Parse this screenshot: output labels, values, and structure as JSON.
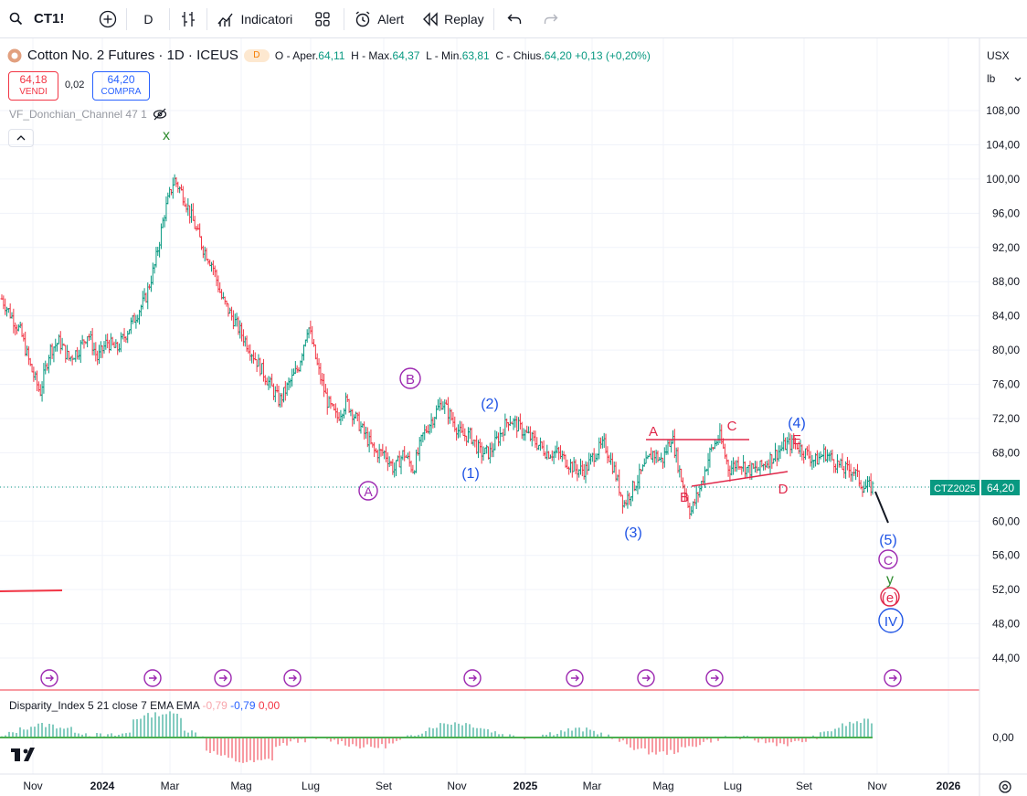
{
  "toolbar": {
    "symbol": "CT1!",
    "interval": "D",
    "indicators_label": "Indicatori",
    "alert_label": "Alert",
    "replay_label": "Replay"
  },
  "legend": {
    "title": "Cotton No. 2 Futures · 1D · ICEUS",
    "badge": "D",
    "open_label": "O - Aper.",
    "open": "64,11",
    "high_label": "H - Max.",
    "high": "64,37",
    "low_label": "L - Min.",
    "low": "63,81",
    "close_label": "C - Chius.",
    "close": "64,20",
    "change": "+0,13 (+0,20%)"
  },
  "trade": {
    "sell_price": "64,18",
    "sell_label": "VENDI",
    "spread": "0,02",
    "buy_price": "64,20",
    "buy_label": "COMPRA"
  },
  "indicator_name": "VF_Donchian_Channel 47 1",
  "sub_indicator": {
    "name": "Disparity_Index 5 21 close 7 EMA EMA",
    "v1": "-0,79",
    "v2": "-0,79",
    "v3": "0,00"
  },
  "price_scale": {
    "currency": "USX",
    "unit": "lb",
    "ticks": [
      "108,00",
      "104,00",
      "100,00",
      "96,00",
      "92,00",
      "88,00",
      "84,00",
      "80,00",
      "76,00",
      "72,00",
      "68,00",
      "64,00",
      "60,00",
      "56,00",
      "52,00",
      "48,00",
      "44,00"
    ],
    "sub_tick": "0,00",
    "symbol_tag": "CTZ2025",
    "last_price": "64,20"
  },
  "time_axis": [
    "Nov",
    "2024",
    "Mar",
    "Mag",
    "Lug",
    "Set",
    "Nov",
    "2025",
    "Mar",
    "Mag",
    "Lug",
    "Set",
    "Nov",
    "2026"
  ],
  "wave_labels": {
    "x": "x",
    "A_circ": "A",
    "B_circ": "B",
    "C_circ": "C",
    "w1": "(1)",
    "w2": "(2)",
    "w3": "(3)",
    "w4": "(4)",
    "w5": "(5)",
    "tA": "A",
    "tB": "B",
    "tC": "C",
    "tD": "D",
    "tE": "E",
    "y": "y",
    "e": "(e)",
    "IV": "IV"
  },
  "colors": {
    "up": "#089981",
    "down": "#f23645",
    "wave_blue": "#1e53e5",
    "wave_purple": "#9c27b0",
    "wave_red": "#e0284a",
    "wave_green": "#2e8b2e"
  },
  "price_series": {
    "start": "2023-10",
    "step_days": 1,
    "approx_path": [
      86,
      84,
      82,
      78,
      75,
      80,
      81,
      79,
      80,
      82,
      79,
      81,
      80,
      82,
      84,
      86,
      90,
      96,
      100,
      98,
      95,
      92,
      90,
      86,
      84,
      82,
      80,
      78,
      76,
      74,
      76,
      78,
      83,
      78,
      74,
      72,
      74,
      72,
      70,
      68,
      68,
      66,
      68,
      66,
      70,
      72,
      74,
      72,
      70,
      70,
      68,
      68,
      70,
      72,
      71,
      70,
      69,
      68,
      68,
      67,
      66,
      66,
      68,
      69,
      66,
      62,
      64,
      66,
      68,
      67,
      70,
      65,
      61,
      64,
      68,
      70,
      66,
      67,
      66,
      66,
      67,
      68,
      69,
      69,
      68,
      67,
      68,
      67,
      66,
      66,
      64,
      64
    ]
  }
}
